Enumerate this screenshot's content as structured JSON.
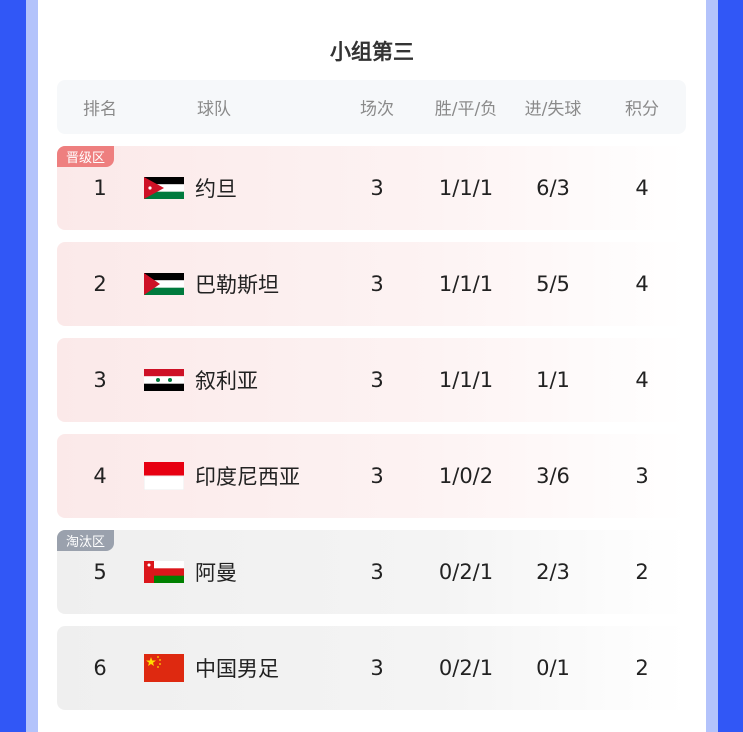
{
  "title": "小组第三",
  "headers": {
    "rank": "排名",
    "team": "球队",
    "played": "场次",
    "wdl": "胜/平/负",
    "goals": "进/失球",
    "points": "积分"
  },
  "zones": {
    "promotion": "晋级区",
    "elimination": "淘汰区"
  },
  "colors": {
    "promotion_badge": "#ee7f7f",
    "elimination_badge": "#9aa1ad",
    "background": "#3157f6"
  },
  "rows": [
    {
      "rank": "1",
      "team": "约旦",
      "flag": "jordan-flag",
      "played": "3",
      "wdl": "1/1/1",
      "goals": "6/3",
      "points": "4",
      "zone": "promotion"
    },
    {
      "rank": "2",
      "team": "巴勒斯坦",
      "flag": "palestine-flag",
      "played": "3",
      "wdl": "1/1/1",
      "goals": "5/5",
      "points": "4",
      "zone": "promotion"
    },
    {
      "rank": "3",
      "team": "叙利亚",
      "flag": "syria-flag",
      "played": "3",
      "wdl": "1/1/1",
      "goals": "1/1",
      "points": "4",
      "zone": "promotion"
    },
    {
      "rank": "4",
      "team": "印度尼西亚",
      "flag": "indonesia-flag",
      "played": "3",
      "wdl": "1/0/2",
      "goals": "3/6",
      "points": "3",
      "zone": "promotion"
    },
    {
      "rank": "5",
      "team": "阿曼",
      "flag": "oman-flag",
      "played": "3",
      "wdl": "0/2/1",
      "goals": "2/3",
      "points": "2",
      "zone": "elimination"
    },
    {
      "rank": "6",
      "team": "中国男足",
      "flag": "china-flag",
      "played": "3",
      "wdl": "0/2/1",
      "goals": "0/1",
      "points": "2",
      "zone": "elimination"
    }
  ]
}
